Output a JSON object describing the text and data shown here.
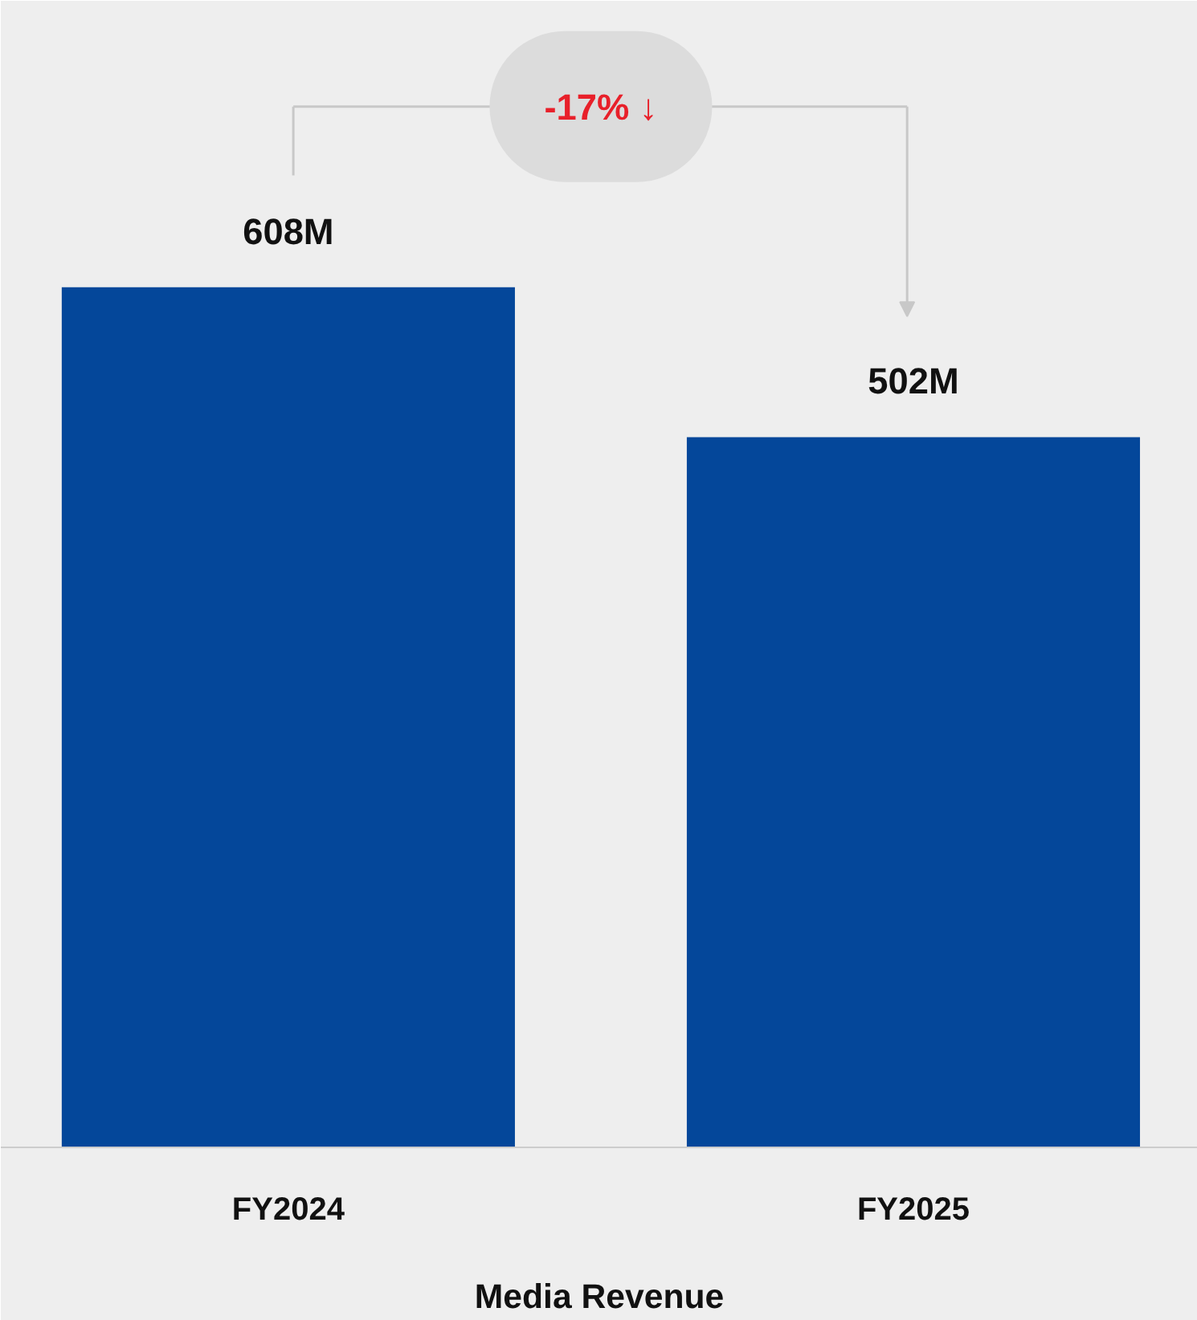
{
  "chart_data": {
    "type": "bar",
    "xlabel": "Media Revenue",
    "categories": [
      "FY2024",
      "FY2025"
    ],
    "values": [
      608,
      502
    ],
    "value_labels": [
      "608M",
      "502M"
    ],
    "color": "#04479a",
    "annotations": [
      "-17% ↓"
    ],
    "grid": false
  }
}
